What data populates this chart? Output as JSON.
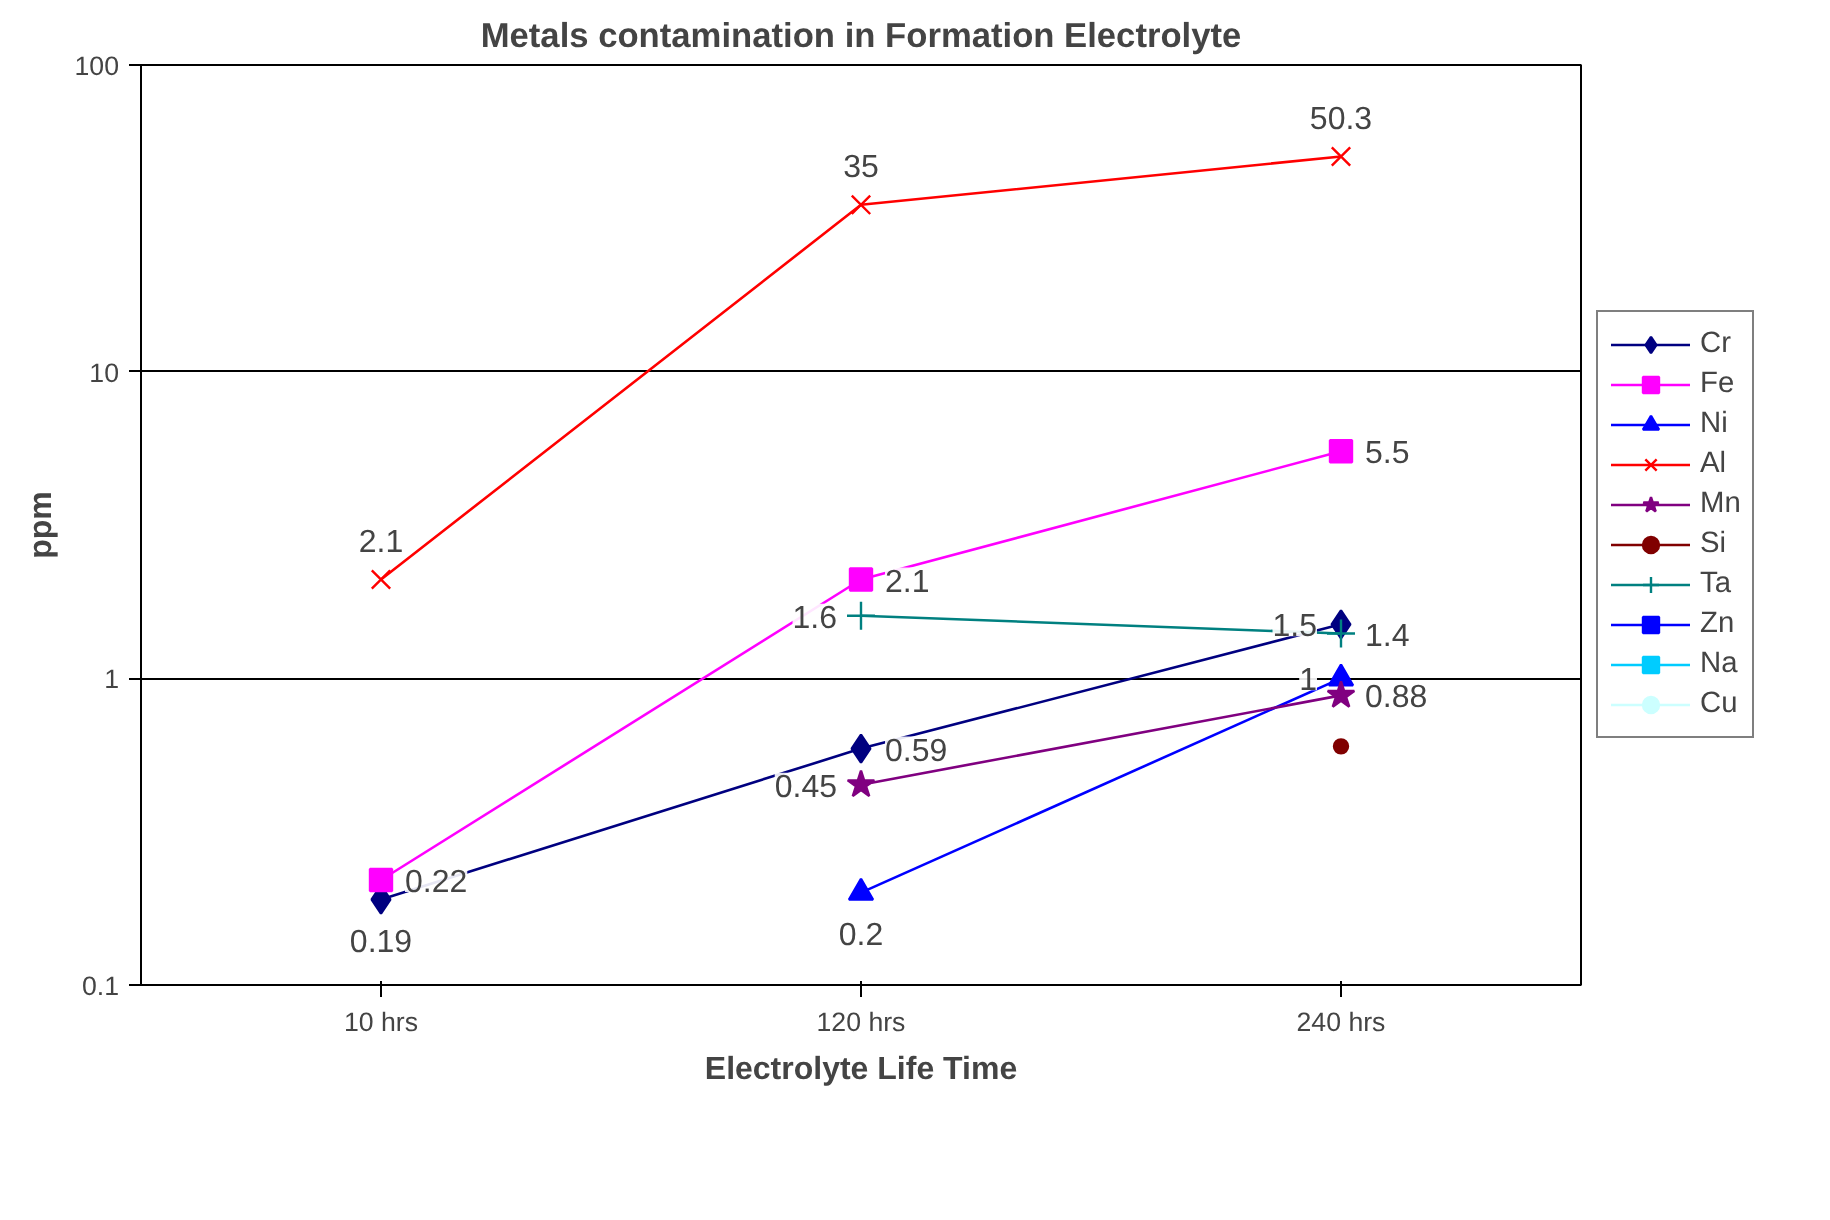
{
  "chart_data": {
    "type": "line",
    "title": "Metals contamination in Formation Electrolyte",
    "xlabel": "Electrolyte Life Time",
    "ylabel": "ppm",
    "categories": [
      "10 hrs",
      "120 hrs",
      "240 hrs"
    ],
    "log": "y",
    "ylim": [
      0.1,
      100
    ],
    "yticks": [
      0.1,
      1,
      10,
      100
    ],
    "grid": "y",
    "legend": "right",
    "series": [
      {
        "name": "Cr",
        "color": "#000080",
        "marker": "diamond",
        "values": [
          0.19,
          0.59,
          1.5
        ],
        "value_labels": [
          "0.19",
          "0.59",
          "1.5"
        ]
      },
      {
        "name": "Fe",
        "color": "#ff00ff",
        "marker": "square",
        "values": [
          0.22,
          2.1,
          5.5
        ],
        "value_labels": [
          "0.22",
          "2.1",
          "5.5"
        ]
      },
      {
        "name": "Ni",
        "color": "#0000ff",
        "marker": "triangle",
        "values": [
          null,
          0.2,
          1
        ],
        "value_labels": [
          null,
          "0.2",
          "1"
        ]
      },
      {
        "name": "Al",
        "color": "#ff0000",
        "marker": "x",
        "values": [
          2.1,
          35,
          50.3
        ],
        "value_labels": [
          "2.1",
          "35",
          "50.3"
        ]
      },
      {
        "name": "Mn",
        "color": "#800080",
        "marker": "star",
        "values": [
          null,
          0.45,
          0.88
        ],
        "value_labels": [
          null,
          "0.45",
          "0.88"
        ]
      },
      {
        "name": "Si",
        "color": "#800000",
        "marker": "circle",
        "values": [
          null,
          null,
          0.6
        ],
        "value_labels": [
          null,
          null,
          null
        ]
      },
      {
        "name": "Ta",
        "color": "#008080",
        "marker": "cross",
        "values": [
          null,
          1.6,
          1.4
        ],
        "value_labels": [
          null,
          "1.6",
          "1.4"
        ]
      },
      {
        "name": "Zn",
        "color": "#0000ff",
        "marker": "square",
        "values": [
          null,
          null,
          null
        ]
      },
      {
        "name": "Na",
        "color": "#00ccff",
        "marker": "square",
        "values": [
          null,
          null,
          null
        ]
      },
      {
        "name": "Cu",
        "color": "#ccffff",
        "marker": "circle",
        "values": [
          null,
          null,
          null
        ]
      }
    ]
  }
}
